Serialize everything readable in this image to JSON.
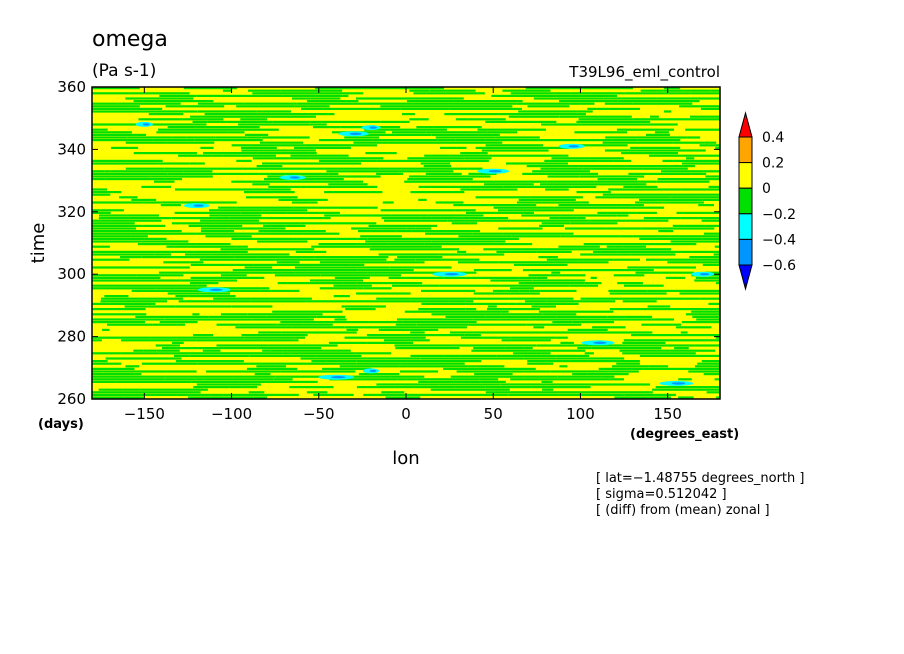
{
  "chart_data": {
    "type": "heatmap",
    "title": "omega",
    "units": "(Pa s-1)",
    "run_name": "T39L96_eml_control",
    "xlabel": "lon",
    "x_units": "(degrees_east)",
    "ylabel": "time",
    "y_units": "(days)",
    "xlim": [
      -180,
      180
    ],
    "ylim": [
      260,
      360
    ],
    "x_ticks": [
      -150,
      -100,
      -50,
      0,
      50,
      100,
      150
    ],
    "y_ticks": [
      260,
      280,
      300,
      320,
      340,
      360
    ],
    "x_tick_labels": [
      "−150",
      "−100",
      "−50",
      "0",
      "50",
      "100",
      "150"
    ],
    "y_tick_labels": [
      "260",
      "280",
      "300",
      "320",
      "340",
      "360"
    ],
    "colorbar": {
      "labels": [
        "0.4",
        "0.2",
        "0",
        "−0.2",
        "−0.4",
        "−0.6"
      ],
      "levels": [
        0.4,
        0.2,
        0,
        -0.2,
        -0.4,
        -0.6
      ],
      "bins": [
        {
          "range": [
            0.4,
            null
          ],
          "color": "#ff0000"
        },
        {
          "range": [
            0.2,
            0.4
          ],
          "color": "#ffa500"
        },
        {
          "range": [
            0,
            0.2
          ],
          "color": "#ffff00"
        },
        {
          "range": [
            -0.2,
            0
          ],
          "color": "#00e000"
        },
        {
          "range": [
            -0.4,
            -0.2
          ],
          "color": "#00ffff"
        },
        {
          "range": [
            -0.6,
            -0.4
          ],
          "color": "#0096ff"
        },
        {
          "range": [
            null,
            -0.6
          ],
          "color": "#0000ff"
        }
      ]
    },
    "annotations": [
      "[ lat=−1.48755 degrees_north ]",
      "[ sigma=0.512042 ]",
      "[ (diff) from (mean) zonal ]"
    ],
    "grid": false,
    "legend": "right"
  }
}
